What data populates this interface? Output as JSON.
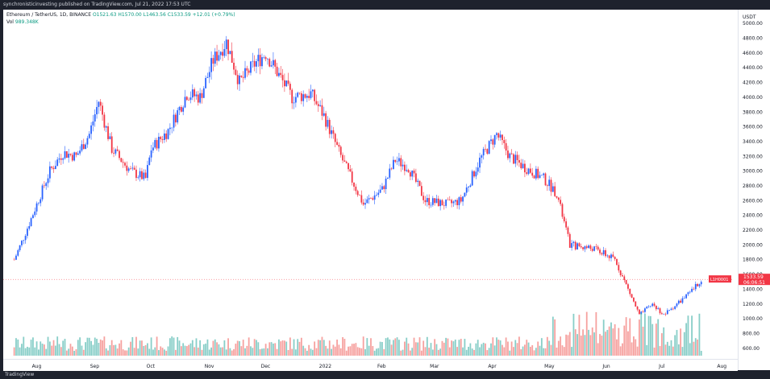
{
  "publisher": "synchronisticinvesting published on TradingView.com, Jul 21, 2022 17:53 UTC",
  "legend": {
    "symbol": "Ethereum / TetherUS, 1D, BINANCE",
    "open": "O1521.63",
    "high": "H1570.00",
    "low": "L1463.56",
    "close": "C1533.59",
    "change": "+12.01 (+0.79%)",
    "volume_label": "Vol",
    "volume_value": "989.348K"
  },
  "price_scale": {
    "currency": "USDT",
    "ticks": [
      "5000.00",
      "4800.00",
      "4600.00",
      "4400.00",
      "4200.00",
      "4000.00",
      "3800.00",
      "3600.00",
      "3400.00",
      "3200.00",
      "3000.00",
      "2800.00",
      "2600.00",
      "2400.00",
      "2200.00",
      "2000.00",
      "1800.00",
      "1600.00",
      "1400.00",
      "1200.00",
      "1000.00",
      "800.00",
      "600.00"
    ],
    "last_price_label": "1533.59",
    "countdown_label": "06:06:51",
    "side_label": "L1H0001"
  },
  "footer": {
    "logo_text": "TradingView"
  },
  "colors": {
    "up": "#2962ff",
    "down": "#f23645",
    "vol_up": "#26a69a",
    "vol_down": "#ef5350",
    "last_price": "#f23645"
  },
  "chart_data": {
    "type": "candlestick",
    "title": "Ethereum / TetherUS, 1D, BINANCE",
    "ylim": [
      500,
      5100
    ],
    "x_ticks": [
      "Aug",
      "Sep",
      "Oct",
      "Nov",
      "Dec",
      "2022",
      "Feb",
      "Mar",
      "Apr",
      "May",
      "Jun",
      "Jul",
      "Aug"
    ],
    "close_path": [
      [
        "2021-07-20",
        1800
      ],
      [
        "2021-07-25",
        2100
      ],
      [
        "2021-08-01",
        2550
      ],
      [
        "2021-08-08",
        3000
      ],
      [
        "2021-08-15",
        3250
      ],
      [
        "2021-08-22",
        3200
      ],
      [
        "2021-08-29",
        3500
      ],
      [
        "2021-09-03",
        3950
      ],
      [
        "2021-09-10",
        3300
      ],
      [
        "2021-09-20",
        3000
      ],
      [
        "2021-09-28",
        2900
      ],
      [
        "2021-10-01",
        3300
      ],
      [
        "2021-10-10",
        3550
      ],
      [
        "2021-10-20",
        4050
      ],
      [
        "2021-10-27",
        4000
      ],
      [
        "2021-11-03",
        4500
      ],
      [
        "2021-11-10",
        4750
      ],
      [
        "2021-11-17",
        4200
      ],
      [
        "2021-11-25",
        4450
      ],
      [
        "2021-12-01",
        4600
      ],
      [
        "2021-12-08",
        4300
      ],
      [
        "2021-12-15",
        4000
      ],
      [
        "2021-12-25",
        4050
      ],
      [
        "2022-01-01",
        3750
      ],
      [
        "2022-01-10",
        3200
      ],
      [
        "2022-01-22",
        2550
      ],
      [
        "2022-02-01",
        2750
      ],
      [
        "2022-02-08",
        3150
      ],
      [
        "2022-02-15",
        3050
      ],
      [
        "2022-02-24",
        2600
      ],
      [
        "2022-03-08",
        2550
      ],
      [
        "2022-03-15",
        2600
      ],
      [
        "2022-03-25",
        3150
      ],
      [
        "2022-04-03",
        3500
      ],
      [
        "2022-04-10",
        3200
      ],
      [
        "2022-04-18",
        3050
      ],
      [
        "2022-04-28",
        2900
      ],
      [
        "2022-05-05",
        2700
      ],
      [
        "2022-05-12",
        2000
      ],
      [
        "2022-05-25",
        1950
      ],
      [
        "2022-06-05",
        1800
      ],
      [
        "2022-06-12",
        1400
      ],
      [
        "2022-06-18",
        1050
      ],
      [
        "2022-06-25",
        1200
      ],
      [
        "2022-07-01",
        1050
      ],
      [
        "2022-07-08",
        1200
      ],
      [
        "2022-07-15",
        1350
      ],
      [
        "2022-07-21",
        1530
      ]
    ]
  }
}
